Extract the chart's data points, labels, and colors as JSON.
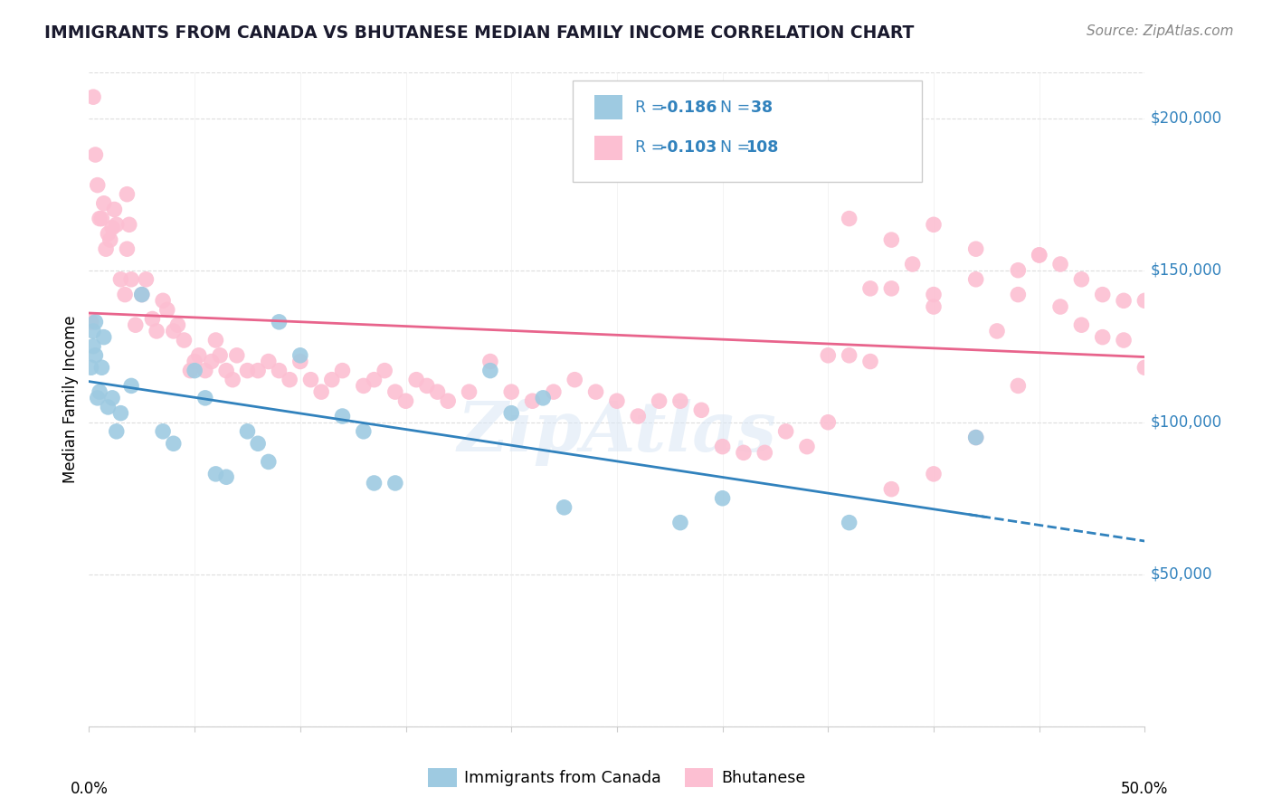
{
  "title": "IMMIGRANTS FROM CANADA VS BHUTANESE MEDIAN FAMILY INCOME CORRELATION CHART",
  "source": "Source: ZipAtlas.com",
  "ylabel": "Median Family Income",
  "yticks": [
    0,
    50000,
    100000,
    150000,
    200000
  ],
  "ytick_labels": [
    "",
    "$50,000",
    "$100,000",
    "$150,000",
    "$200,000"
  ],
  "xlim": [
    0.0,
    0.5
  ],
  "ylim": [
    0,
    215000
  ],
  "blue_color": "#9ecae1",
  "pink_color": "#fcbfd2",
  "blue_line_color": "#3182bd",
  "pink_line_color": "#e8648c",
  "watermark": "ZipAtlas",
  "blue_scatter_x": [
    0.001,
    0.002,
    0.002,
    0.003,
    0.003,
    0.004,
    0.005,
    0.006,
    0.007,
    0.009,
    0.011,
    0.013,
    0.015,
    0.02,
    0.025,
    0.035,
    0.04,
    0.05,
    0.055,
    0.06,
    0.065,
    0.075,
    0.08,
    0.085,
    0.09,
    0.1,
    0.12,
    0.13,
    0.135,
    0.145,
    0.19,
    0.2,
    0.215,
    0.225,
    0.28,
    0.3,
    0.36,
    0.42
  ],
  "blue_scatter_y": [
    118000,
    130000,
    125000,
    133000,
    122000,
    108000,
    110000,
    118000,
    128000,
    105000,
    108000,
    97000,
    103000,
    112000,
    142000,
    97000,
    93000,
    117000,
    108000,
    83000,
    82000,
    97000,
    93000,
    87000,
    133000,
    122000,
    102000,
    97000,
    80000,
    80000,
    117000,
    103000,
    108000,
    72000,
    67000,
    75000,
    67000,
    95000
  ],
  "pink_scatter_x": [
    0.001,
    0.002,
    0.003,
    0.004,
    0.005,
    0.006,
    0.007,
    0.008,
    0.009,
    0.01,
    0.011,
    0.012,
    0.013,
    0.015,
    0.017,
    0.018,
    0.018,
    0.019,
    0.02,
    0.022,
    0.025,
    0.027,
    0.03,
    0.032,
    0.035,
    0.037,
    0.04,
    0.042,
    0.045,
    0.048,
    0.05,
    0.052,
    0.055,
    0.058,
    0.06,
    0.062,
    0.065,
    0.068,
    0.07,
    0.075,
    0.08,
    0.085,
    0.09,
    0.095,
    0.1,
    0.105,
    0.11,
    0.115,
    0.12,
    0.13,
    0.135,
    0.14,
    0.145,
    0.15,
    0.155,
    0.16,
    0.165,
    0.17,
    0.18,
    0.19,
    0.2,
    0.21,
    0.22,
    0.23,
    0.24,
    0.25,
    0.26,
    0.27,
    0.28,
    0.29,
    0.3,
    0.31,
    0.32,
    0.33,
    0.34,
    0.35,
    0.36,
    0.37,
    0.38,
    0.39,
    0.4,
    0.42,
    0.44,
    0.45,
    0.46,
    0.47,
    0.48,
    0.49,
    0.5,
    0.38,
    0.4,
    0.42,
    0.44,
    0.46,
    0.47,
    0.48,
    0.49,
    0.5,
    0.36,
    0.38,
    0.4,
    0.42,
    0.44,
    0.35,
    0.37,
    0.4,
    0.43,
    0.45
  ],
  "pink_scatter_y": [
    133000,
    207000,
    188000,
    178000,
    167000,
    167000,
    172000,
    157000,
    162000,
    160000,
    164000,
    170000,
    165000,
    147000,
    142000,
    157000,
    175000,
    165000,
    147000,
    132000,
    142000,
    147000,
    134000,
    130000,
    140000,
    137000,
    130000,
    132000,
    127000,
    117000,
    120000,
    122000,
    117000,
    120000,
    127000,
    122000,
    117000,
    114000,
    122000,
    117000,
    117000,
    120000,
    117000,
    114000,
    120000,
    114000,
    110000,
    114000,
    117000,
    112000,
    114000,
    117000,
    110000,
    107000,
    114000,
    112000,
    110000,
    107000,
    110000,
    120000,
    110000,
    107000,
    110000,
    114000,
    110000,
    107000,
    102000,
    107000,
    107000,
    104000,
    92000,
    90000,
    90000,
    97000,
    92000,
    100000,
    122000,
    144000,
    144000,
    152000,
    142000,
    147000,
    142000,
    155000,
    152000,
    147000,
    142000,
    140000,
    140000,
    78000,
    83000,
    95000,
    112000,
    138000,
    132000,
    128000,
    127000,
    118000,
    167000,
    160000,
    165000,
    157000,
    150000,
    122000,
    120000,
    138000,
    130000,
    155000
  ]
}
